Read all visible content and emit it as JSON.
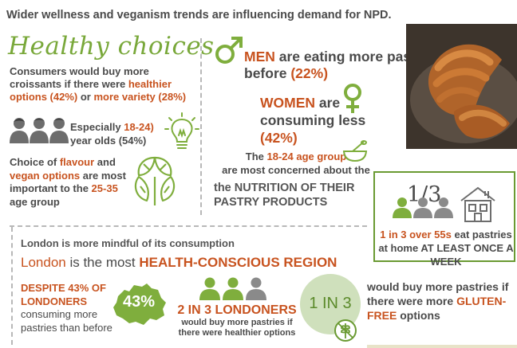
{
  "header": "Wider wellness and veganism trends are influencing demand for NPD.",
  "healthy": {
    "title": "Healthy choices",
    "line1": "Consumers would buy more croissants if there were ",
    "line1_hl": "healthier options (42%)",
    "line2_pre": " or ",
    "line2_hl": "more variety (28%)"
  },
  "especially": {
    "pre": "Especially ",
    "hl": "18-24)",
    "post": "year olds (54%)"
  },
  "flavour": {
    "pre": "Choice of ",
    "hl1": "flavour",
    "mid": " and ",
    "hl2": "vegan options",
    "post": " are most important to the ",
    "hl3": "25-35",
    "end": " age group"
  },
  "men": {
    "hl": "MEN",
    "text": " are eating more pastries than before ",
    "pct": "(22%)"
  },
  "women": {
    "hl": "WOMEN",
    "text": " are consuming less ",
    "pct": "(42%)"
  },
  "age_group": {
    "pre": "The ",
    "hl": "18-24 age group",
    "post": " are most concerned about the"
  },
  "nutrition": {
    "pre": "the ",
    "hl": "NUTRITION OF THEIR",
    "line2": "PASTRY PRODUCTS"
  },
  "over55": {
    "fraction": "1/3",
    "hl": "1 in 3 over 55s",
    "text": " eat pastries at home ",
    "hl2": "AT LEAST ONCE A WEEK"
  },
  "london": {
    "mindful": "London is more mindful of its consumption",
    "region_pre": "London",
    "region_mid": " is the most ",
    "region_hl": "HEALTH-CONSCIOUS REGION",
    "despite_hl": "DESPITE 43% OF LONDONERS",
    "despite_text": " consuming more pastries than before",
    "map_pct": "43%",
    "two_in_three": "2 IN 3 LONDONERS",
    "two_in_three_sub": "would buy more pastries if there were healthier options",
    "one_in_three": "1 IN 3",
    "gluten_pre": "would buy more pastries if there were more ",
    "gluten_hl": "GLUTEN-FREE",
    "gluten_post": " options"
  },
  "icons": {
    "male": "male-symbol-icon",
    "female": "female-symbol-icon",
    "people": "people-group-icon",
    "bulb": "lightbulb-icon",
    "basil": "basil-leaf-icon",
    "bowl": "mixing-bowl-icon",
    "house": "house-icon",
    "gluten": "gluten-free-icon",
    "map": "london-map-icon"
  },
  "colors": {
    "orange": "#c8531f",
    "green": "#6a9a32",
    "light_green": "#cfe0bc",
    "text": "#4a4a4a"
  }
}
